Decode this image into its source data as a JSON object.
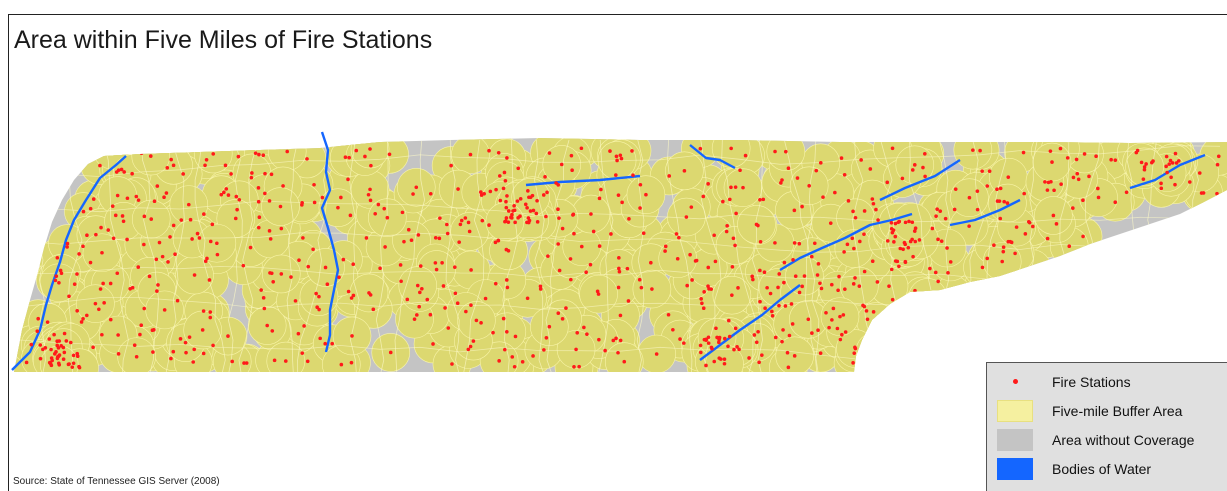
{
  "title": "Area within Five Miles of Fire Stations",
  "source": "Source:  State of Tennessee GIS Server (2008)",
  "legend": {
    "items": [
      {
        "label": "Fire Stations",
        "symbol": "dot",
        "color": "#ff1a1a"
      },
      {
        "label": "Five-mile Buffer Area",
        "symbol": "fill",
        "color": "#f5f0a0"
      },
      {
        "label": "Area without Coverage",
        "symbol": "fill",
        "color": "#c4c4c4"
      },
      {
        "label": "Bodies of Water",
        "symbol": "fill",
        "color": "#1466ff"
      }
    ]
  },
  "colors": {
    "coverage_fill": "#dcd870",
    "coverage_outline": "#f8f4a8",
    "no_coverage": "#c4c4c4",
    "water": "#1466ff",
    "station": "#ff1a1a"
  }
}
